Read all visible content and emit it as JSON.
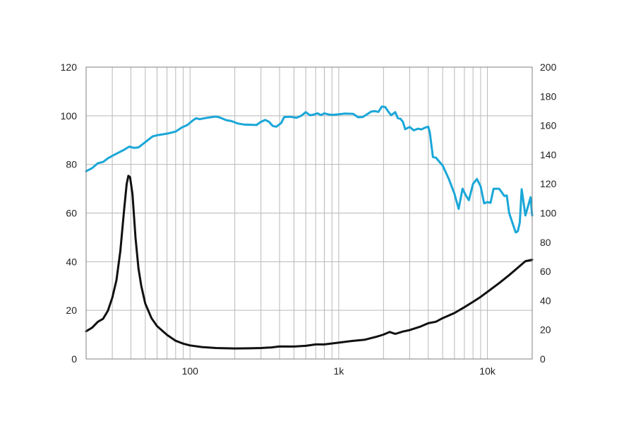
{
  "chart_data": {
    "type": "line",
    "title": "",
    "xlabel": "",
    "ylabel": "",
    "y2label": "",
    "x_scale": "log",
    "xlim": [
      20,
      20000
    ],
    "ylim": [
      0,
      120
    ],
    "y2lim": [
      0,
      200
    ],
    "grid": true,
    "legend": "none",
    "x_ticks": [
      {
        "value": 100,
        "label": "100"
      },
      {
        "value": 1000,
        "label": "1k"
      },
      {
        "value": 10000,
        "label": "10k"
      }
    ],
    "y_ticks": [
      0,
      20,
      40,
      60,
      80,
      100,
      120
    ],
    "y2_ticks": [
      0,
      20,
      40,
      60,
      80,
      100,
      120,
      140,
      160,
      180,
      200
    ],
    "series": [
      {
        "axis": "left",
        "color": "#1aa7d8",
        "points": [
          [
            20,
            77.2
          ],
          [
            22,
            78.5
          ],
          [
            24,
            80.5
          ],
          [
            26,
            81
          ],
          [
            28,
            82.5
          ],
          [
            30,
            83.5
          ],
          [
            33,
            84.8
          ],
          [
            36,
            86
          ],
          [
            39,
            87.3
          ],
          [
            42,
            86.8
          ],
          [
            45,
            87
          ],
          [
            48,
            88.3
          ],
          [
            52,
            90
          ],
          [
            56,
            91.5
          ],
          [
            60,
            92
          ],
          [
            66,
            92.4
          ],
          [
            72,
            92.8
          ],
          [
            80,
            93.5
          ],
          [
            88,
            95.2
          ],
          [
            96,
            96.2
          ],
          [
            105,
            98.2
          ],
          [
            110,
            99
          ],
          [
            116,
            98.6
          ],
          [
            125,
            99
          ],
          [
            135,
            99.3
          ],
          [
            150,
            99.7
          ],
          [
            160,
            99.2
          ],
          [
            175,
            98.2
          ],
          [
            190,
            97.8
          ],
          [
            210,
            96.8
          ],
          [
            230,
            96.4
          ],
          [
            260,
            96.3
          ],
          [
            280,
            96.2
          ],
          [
            300,
            97.5
          ],
          [
            320,
            98.3
          ],
          [
            340,
            97.5
          ],
          [
            360,
            95.8
          ],
          [
            380,
            95.5
          ],
          [
            410,
            97
          ],
          [
            430,
            99.5
          ],
          [
            470,
            99.6
          ],
          [
            520,
            99.2
          ],
          [
            560,
            100
          ],
          [
            600,
            101.5
          ],
          [
            640,
            100.2
          ],
          [
            680,
            100.5
          ],
          [
            720,
            101
          ],
          [
            760,
            100.3
          ],
          [
            800,
            101
          ],
          [
            860,
            100.5
          ],
          [
            920,
            100.4
          ],
          [
            1000,
            100.6
          ],
          [
            1100,
            100.9
          ],
          [
            1250,
            100.8
          ],
          [
            1350,
            99.4
          ],
          [
            1450,
            99.5
          ],
          [
            1550,
            100.6
          ],
          [
            1650,
            101.7
          ],
          [
            1750,
            101.9
          ],
          [
            1850,
            101.6
          ],
          [
            1950,
            103.8
          ],
          [
            2050,
            103.6
          ],
          [
            2150,
            101.8
          ],
          [
            2250,
            100.2
          ],
          [
            2400,
            101.5
          ],
          [
            2500,
            99
          ],
          [
            2600,
            98.8
          ],
          [
            2700,
            97.5
          ],
          [
            2800,
            94.5
          ],
          [
            3000,
            95.4
          ],
          [
            3200,
            94
          ],
          [
            3400,
            94.7
          ],
          [
            3600,
            94.4
          ],
          [
            3800,
            95.1
          ],
          [
            4000,
            95.5
          ],
          [
            4100,
            93
          ],
          [
            4300,
            83
          ],
          [
            4500,
            82.8
          ],
          [
            5000,
            79.5
          ],
          [
            5500,
            74
          ],
          [
            6000,
            68
          ],
          [
            6400,
            61.7
          ],
          [
            6800,
            70
          ],
          [
            7200,
            67
          ],
          [
            7500,
            65.3
          ],
          [
            8000,
            72
          ],
          [
            8500,
            74
          ],
          [
            9000,
            71
          ],
          [
            9500,
            64
          ],
          [
            10000,
            64.5
          ],
          [
            10500,
            64.2
          ],
          [
            11000,
            70
          ],
          [
            12000,
            70
          ],
          [
            13000,
            67
          ],
          [
            13500,
            67.2
          ],
          [
            14000,
            60
          ],
          [
            15000,
            54.5
          ],
          [
            15500,
            52
          ],
          [
            16000,
            52.5
          ],
          [
            16500,
            56
          ],
          [
            17000,
            69.8
          ],
          [
            18000,
            59
          ],
          [
            19000,
            64
          ],
          [
            19500,
            66.5
          ],
          [
            20000,
            59
          ]
        ]
      },
      {
        "axis": "right",
        "color": "#111111",
        "points": [
          [
            20,
            19
          ],
          [
            22,
            21.5
          ],
          [
            24,
            25.5
          ],
          [
            26,
            27.5
          ],
          [
            28,
            33
          ],
          [
            30,
            42
          ],
          [
            32,
            54
          ],
          [
            34,
            74
          ],
          [
            36,
            102
          ],
          [
            37.5,
            120
          ],
          [
            38.5,
            125.5
          ],
          [
            39.5,
            124.5
          ],
          [
            41,
            113
          ],
          [
            43,
            83
          ],
          [
            45,
            62
          ],
          [
            47,
            50
          ],
          [
            50,
            38
          ],
          [
            55,
            28
          ],
          [
            60,
            22.5
          ],
          [
            70,
            16.5
          ],
          [
            80,
            12.5
          ],
          [
            90,
            10.5
          ],
          [
            100,
            9.3
          ],
          [
            120,
            8.2
          ],
          [
            150,
            7.5
          ],
          [
            200,
            7.2
          ],
          [
            250,
            7.3
          ],
          [
            300,
            7.5
          ],
          [
            350,
            7.9
          ],
          [
            400,
            8.6
          ],
          [
            500,
            8.5
          ],
          [
            600,
            9
          ],
          [
            700,
            10
          ],
          [
            800,
            10
          ],
          [
            1000,
            11.2
          ],
          [
            1200,
            12.2
          ],
          [
            1500,
            13.2
          ],
          [
            1800,
            15.3
          ],
          [
            2000,
            16.7
          ],
          [
            2200,
            18.5
          ],
          [
            2400,
            17.2
          ],
          [
            2700,
            18.8
          ],
          [
            3000,
            19.8
          ],
          [
            3500,
            22
          ],
          [
            4000,
            24.5
          ],
          [
            4500,
            25.5
          ],
          [
            5000,
            28
          ],
          [
            6000,
            31.5
          ],
          [
            7000,
            35.5
          ],
          [
            8000,
            39.2
          ],
          [
            9000,
            42.5
          ],
          [
            10000,
            46
          ],
          [
            12000,
            52
          ],
          [
            14000,
            57.5
          ],
          [
            16000,
            62.5
          ],
          [
            18000,
            67
          ],
          [
            20000,
            68
          ]
        ]
      }
    ]
  }
}
